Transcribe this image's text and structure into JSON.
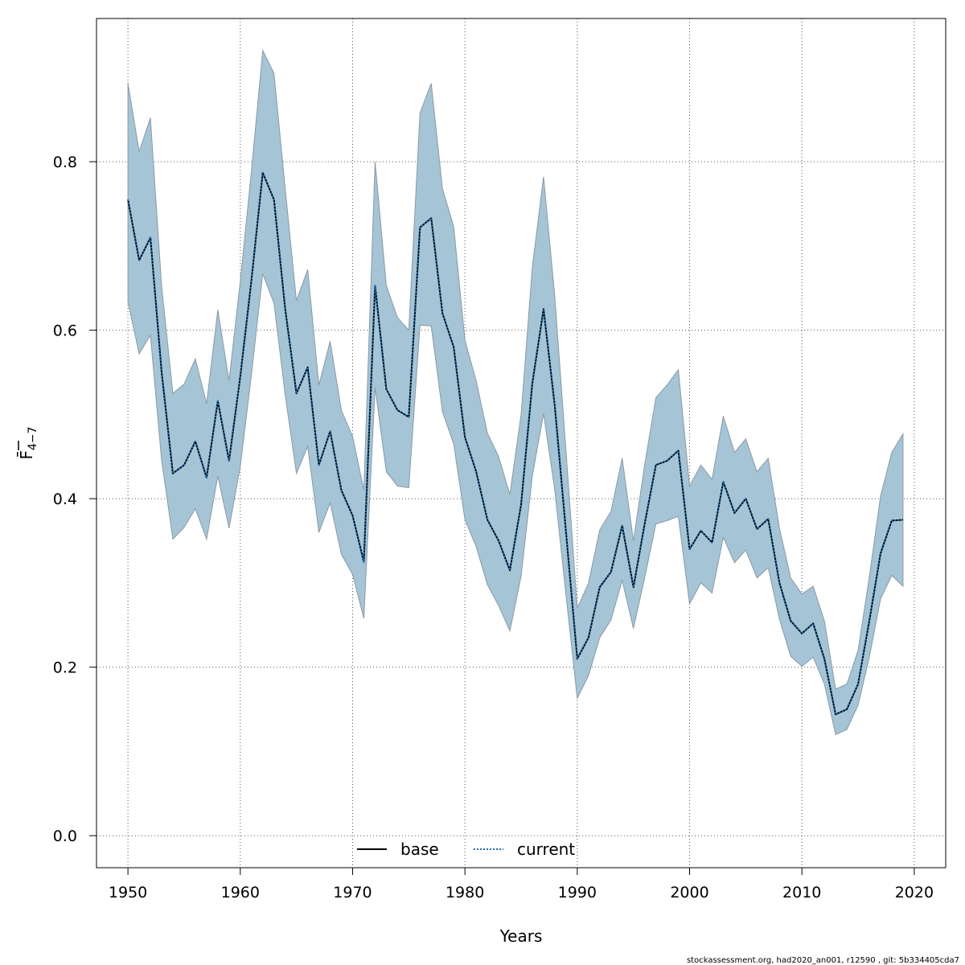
{
  "chart_data": {
    "type": "line",
    "xlabel": "Years",
    "ylabel": "F̄",
    "ylabel_sub": "4−7",
    "xlim": [
      1947.2,
      2022.8
    ],
    "ylim": [
      -0.038,
      0.97
    ],
    "x_ticks": [
      1950,
      1960,
      1970,
      1980,
      1990,
      2000,
      2010,
      2020
    ],
    "y_ticks": [
      0.0,
      0.2,
      0.4,
      0.6,
      0.8
    ],
    "y_tick_labels": [
      "0.0",
      "0.2",
      "0.4",
      "0.6",
      "0.8"
    ],
    "grid": true,
    "legend_position": "bottom-center",
    "colors": {
      "band_fill": "#a5c4d5",
      "band_edge": "#8a9aa6",
      "base": "#000000",
      "current": "#1f6fb0",
      "grid": "#555555",
      "axis": "#000000"
    },
    "x": [
      1950,
      1951,
      1952,
      1953,
      1954,
      1955,
      1956,
      1957,
      1958,
      1959,
      1960,
      1961,
      1962,
      1963,
      1964,
      1965,
      1966,
      1967,
      1968,
      1969,
      1970,
      1971,
      1972,
      1973,
      1974,
      1975,
      1976,
      1977,
      1978,
      1979,
      1980,
      1981,
      1982,
      1983,
      1984,
      1985,
      1986,
      1987,
      1988,
      1989,
      1990,
      1991,
      1992,
      1993,
      1994,
      1995,
      1996,
      1997,
      1998,
      1999,
      2000,
      2001,
      2002,
      2003,
      2004,
      2005,
      2006,
      2007,
      2008,
      2009,
      2010,
      2011,
      2012,
      2013,
      2014,
      2015,
      2016,
      2017,
      2018,
      2019
    ],
    "series": [
      {
        "name": "base",
        "style": "solid",
        "values": [
          0.755,
          0.683,
          0.71,
          0.55,
          0.43,
          0.44,
          0.468,
          0.425,
          0.516,
          0.445,
          0.545,
          0.66,
          0.787,
          0.755,
          0.625,
          0.525,
          0.556,
          0.44,
          0.48,
          0.41,
          0.38,
          0.325,
          0.653,
          0.53,
          0.505,
          0.497,
          0.722,
          0.733,
          0.62,
          0.58,
          0.473,
          0.432,
          0.375,
          0.35,
          0.315,
          0.393,
          0.537,
          0.625,
          0.51,
          0.36,
          0.21,
          0.235,
          0.295,
          0.313,
          0.368,
          0.295,
          0.37,
          0.44,
          0.445,
          0.457,
          0.34,
          0.362,
          0.348,
          0.42,
          0.383,
          0.4,
          0.364,
          0.376,
          0.3,
          0.255,
          0.24,
          0.252,
          0.21,
          0.144,
          0.15,
          0.18,
          0.255,
          0.335,
          0.374,
          0.375
        ]
      },
      {
        "name": "current",
        "style": "dotted",
        "values": [
          0.755,
          0.683,
          0.71,
          0.55,
          0.43,
          0.44,
          0.468,
          0.425,
          0.516,
          0.445,
          0.545,
          0.66,
          0.787,
          0.755,
          0.625,
          0.525,
          0.556,
          0.44,
          0.48,
          0.41,
          0.38,
          0.325,
          0.653,
          0.53,
          0.505,
          0.497,
          0.722,
          0.733,
          0.62,
          0.58,
          0.473,
          0.432,
          0.375,
          0.35,
          0.315,
          0.393,
          0.537,
          0.625,
          0.51,
          0.36,
          0.21,
          0.235,
          0.295,
          0.313,
          0.368,
          0.295,
          0.37,
          0.44,
          0.445,
          0.457,
          0.34,
          0.362,
          0.348,
          0.42,
          0.383,
          0.4,
          0.364,
          0.376,
          0.3,
          0.255,
          0.24,
          0.252,
          0.21,
          0.144,
          0.15,
          0.18,
          0.255,
          0.335,
          0.374,
          0.375
        ]
      }
    ],
    "band_upper": [
      0.893,
      0.812,
      0.852,
      0.652,
      0.525,
      0.536,
      0.566,
      0.513,
      0.624,
      0.54,
      0.658,
      0.79,
      0.932,
      0.905,
      0.768,
      0.635,
      0.672,
      0.535,
      0.587,
      0.505,
      0.474,
      0.41,
      0.8,
      0.653,
      0.615,
      0.6,
      0.858,
      0.893,
      0.768,
      0.723,
      0.588,
      0.54,
      0.478,
      0.45,
      0.405,
      0.5,
      0.675,
      0.782,
      0.64,
      0.456,
      0.27,
      0.3,
      0.363,
      0.385,
      0.448,
      0.35,
      0.44,
      0.52,
      0.535,
      0.553,
      0.415,
      0.44,
      0.423,
      0.498,
      0.455,
      0.471,
      0.432,
      0.448,
      0.365,
      0.306,
      0.287,
      0.296,
      0.255,
      0.174,
      0.18,
      0.22,
      0.307,
      0.403,
      0.455,
      0.477
    ],
    "band_lower": [
      0.633,
      0.572,
      0.594,
      0.445,
      0.352,
      0.366,
      0.388,
      0.352,
      0.427,
      0.365,
      0.438,
      0.548,
      0.667,
      0.632,
      0.523,
      0.43,
      0.462,
      0.36,
      0.395,
      0.334,
      0.31,
      0.258,
      0.532,
      0.432,
      0.415,
      0.413,
      0.606,
      0.605,
      0.503,
      0.465,
      0.375,
      0.343,
      0.298,
      0.273,
      0.243,
      0.308,
      0.427,
      0.501,
      0.41,
      0.285,
      0.163,
      0.19,
      0.235,
      0.256,
      0.303,
      0.246,
      0.306,
      0.37,
      0.374,
      0.379,
      0.275,
      0.3,
      0.288,
      0.354,
      0.324,
      0.339,
      0.306,
      0.318,
      0.257,
      0.213,
      0.201,
      0.212,
      0.18,
      0.12,
      0.126,
      0.155,
      0.212,
      0.281,
      0.309,
      0.296
    ]
  },
  "legend": {
    "base_label": "base",
    "current_label": "current"
  },
  "footer": {
    "text": "stockassessment.org, had2020_an001, r12590 , git: 5b334405cda7"
  }
}
